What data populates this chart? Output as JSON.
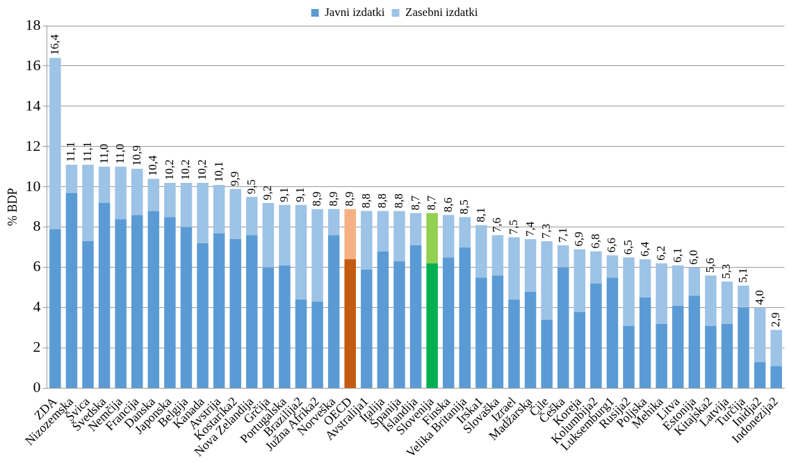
{
  "chart_data": {
    "type": "bar",
    "stacked": true,
    "ylabel": "% BDP",
    "legend": "top",
    "grid": "y",
    "categories": [
      "ZDA",
      "Nizozemska",
      "Švica",
      "Švedska",
      "Nemčija",
      "Francija",
      "Danska",
      "Japonska",
      "Belgija",
      "Kanada",
      "Avstrija",
      "Kostarika2",
      "Nova Zelandija",
      "Grčija",
      "Portugalska",
      "Brazilija2",
      "Južna Afrika2",
      "Norveška",
      "OECD",
      "Avstralija1",
      "Italija",
      "Španija",
      "Islandija",
      "Slovenija",
      "Finska",
      "Velika Britanija",
      "Irska1",
      "Slovaška",
      "Izrael",
      "Madžarska",
      "Čile",
      "Češka",
      "Koreja",
      "Kolumbija2",
      "Luksemburg1",
      "Rusija2",
      "Poljska",
      "Mehika",
      "Litva",
      "Estonija",
      "Kitajska2",
      "Latvija",
      "Turčija",
      "Inidja2",
      "Indonezija2"
    ],
    "series": [
      {
        "name": "Javni izdatki",
        "color": "#5b9bd5",
        "colors": [
          "#5b9bd5",
          "#5b9bd5",
          "#5b9bd5",
          "#5b9bd5",
          "#5b9bd5",
          "#5b9bd5",
          "#5b9bd5",
          "#5b9bd5",
          "#5b9bd5",
          "#5b9bd5",
          "#5b9bd5",
          "#5b9bd5",
          "#5b9bd5",
          "#5b9bd5",
          "#5b9bd5",
          "#5b9bd5",
          "#5b9bd5",
          "#5b9bd5",
          "#c55a11",
          "#5b9bd5",
          "#5b9bd5",
          "#5b9bd5",
          "#5b9bd5",
          "#00b050",
          "#5b9bd5",
          "#5b9bd5",
          "#5b9bd5",
          "#5b9bd5",
          "#5b9bd5",
          "#5b9bd5",
          "#5b9bd5",
          "#5b9bd5",
          "#5b9bd5",
          "#5b9bd5",
          "#5b9bd5",
          "#5b9bd5",
          "#5b9bd5",
          "#5b9bd5",
          "#5b9bd5",
          "#5b9bd5",
          "#5b9bd5",
          "#5b9bd5",
          "#5b9bd5",
          "#5b9bd5",
          "#5b9bd5"
        ],
        "values": [
          7.9,
          9.7,
          7.3,
          9.2,
          8.4,
          8.6,
          8.8,
          8.5,
          8.0,
          7.2,
          7.7,
          7.4,
          7.6,
          6.0,
          6.1,
          4.4,
          4.3,
          7.6,
          6.4,
          5.9,
          6.8,
          6.3,
          7.1,
          6.2,
          6.5,
          7.0,
          5.5,
          5.6,
          4.4,
          4.8,
          3.4,
          6.0,
          3.8,
          5.2,
          5.5,
          3.1,
          4.5,
          3.2,
          4.1,
          4.6,
          3.1,
          3.2,
          4.0,
          1.3,
          1.1
        ]
      },
      {
        "name": "Zasebni izdatki",
        "color": "#9dc3e6",
        "colors": [
          "#9dc3e6",
          "#9dc3e6",
          "#9dc3e6",
          "#9dc3e6",
          "#9dc3e6",
          "#9dc3e6",
          "#9dc3e6",
          "#9dc3e6",
          "#9dc3e6",
          "#9dc3e6",
          "#9dc3e6",
          "#9dc3e6",
          "#9dc3e6",
          "#9dc3e6",
          "#9dc3e6",
          "#9dc3e6",
          "#9dc3e6",
          "#9dc3e6",
          "#f4b183",
          "#9dc3e6",
          "#9dc3e6",
          "#9dc3e6",
          "#9dc3e6",
          "#92d050",
          "#9dc3e6",
          "#9dc3e6",
          "#9dc3e6",
          "#9dc3e6",
          "#9dc3e6",
          "#9dc3e6",
          "#9dc3e6",
          "#9dc3e6",
          "#9dc3e6",
          "#9dc3e6",
          "#9dc3e6",
          "#9dc3e6",
          "#9dc3e6",
          "#9dc3e6",
          "#9dc3e6",
          "#9dc3e6",
          "#9dc3e6",
          "#9dc3e6",
          "#9dc3e6",
          "#9dc3e6",
          "#9dc3e6"
        ],
        "values": [
          8.5,
          1.4,
          3.8,
          1.8,
          2.6,
          2.3,
          1.6,
          1.7,
          2.2,
          3.0,
          2.4,
          2.5,
          1.9,
          3.2,
          3.0,
          4.7,
          4.6,
          1.3,
          2.5,
          2.9,
          2.0,
          2.5,
          1.6,
          2.5,
          2.1,
          1.5,
          2.6,
          2.0,
          3.1,
          2.6,
          3.9,
          1.1,
          3.1,
          1.6,
          1.1,
          3.4,
          1.9,
          3.0,
          2.0,
          1.4,
          2.5,
          2.1,
          1.1,
          2.7,
          1.8
        ]
      }
    ],
    "totals": [
      "16,4",
      "11,1",
      "11,1",
      "11,0",
      "11,0",
      "10,9",
      "10,4",
      "10,2",
      "10,2",
      "10,2",
      "10,1",
      "9,9",
      "9,5",
      "9,2",
      "9,1",
      "9,1",
      "8,9",
      "8,9",
      "8,9",
      "8,8",
      "8,8",
      "8,8",
      "8,7",
      "8,7",
      "8,6",
      "8,5",
      "8,1",
      "7,6",
      "7,5",
      "7,4",
      "7,3",
      "7,1",
      "6,9",
      "6,8",
      "6,6",
      "6,5",
      "6,4",
      "6,2",
      "6,1",
      "6,0",
      "5,6",
      "5,3",
      "5,1",
      "4,0",
      "2,9"
    ],
    "ylim": [
      0,
      18
    ],
    "yticks": [
      0,
      2,
      4,
      6,
      8,
      10,
      12,
      14,
      16,
      18
    ]
  }
}
